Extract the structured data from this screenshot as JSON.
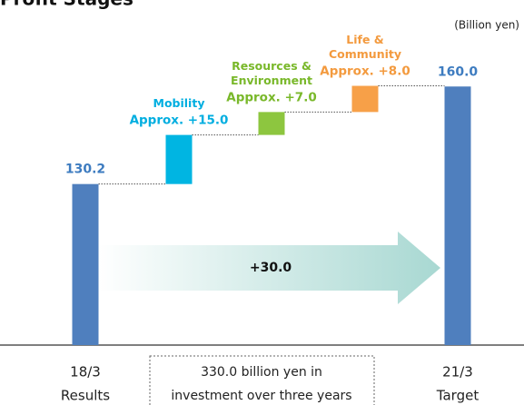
{
  "chart_data": {
    "type": "waterfall",
    "title": "Profit Stages",
    "units": "(Billion yen)",
    "categories": [
      [
        "18/3",
        "Results"
      ],
      [
        "Mobility"
      ],
      [
        "Resources &",
        "Environment"
      ],
      [
        "Life &",
        "Community"
      ],
      [
        "21/3",
        "Target"
      ]
    ],
    "values": [
      130.2,
      15.0,
      7.0,
      8.0,
      160.0
    ],
    "value_labels": [
      "130.2",
      "Approx. +15.0",
      "Approx. +7.0",
      "Approx. +8.0",
      "160.0"
    ],
    "colors": [
      "#4f7fbe",
      "#00b5e2",
      "#8dc63f",
      "#f7a048",
      "#4f7fbe"
    ],
    "label_colors": [
      "#3e7cc0",
      "#00aee0",
      "#79b82a",
      "#f39a3e",
      "#3e7cc0"
    ],
    "ylim": [
      81,
      172
    ],
    "annotations": {
      "arrow": "+30.0",
      "note": [
        "330.0 billion yen in",
        "investment over three years"
      ]
    }
  }
}
